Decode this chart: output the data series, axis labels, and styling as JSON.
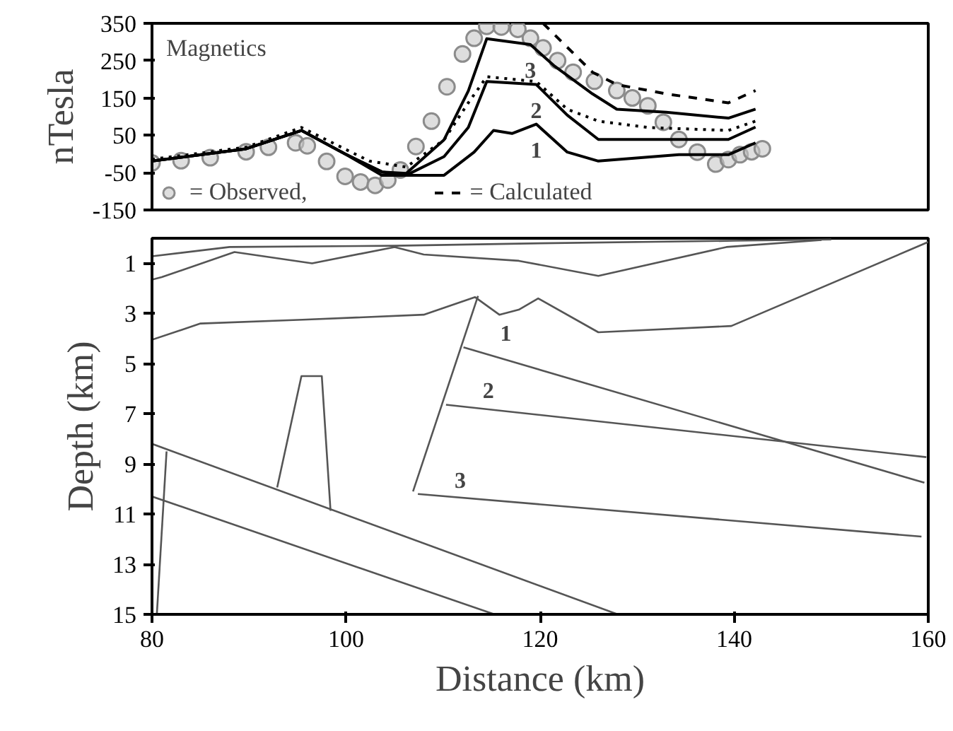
{
  "chart_data": [
    {
      "type": "line",
      "ylabel": "nTesla",
      "xlim": [
        80,
        160
      ],
      "ylim": [
        -150,
        350
      ],
      "yticks": [
        350,
        250,
        150,
        50,
        -50,
        -150
      ],
      "tick_labels": "y",
      "grid": false,
      "legend": "bottom left",
      "annotations": [
        "Magnetics",
        {
          "text": "1",
          "x": 119.6,
          "y": 80
        },
        {
          "text": "2",
          "x": 119.6,
          "y": 186
        },
        {
          "text": "3",
          "x": 119,
          "y": 293
        }
      ],
      "series": [
        {
          "name": "= Observed,",
          "type": "scatter",
          "marker": "circle",
          "color": "#8c8c8c",
          "x": [
            80,
            83,
            86,
            89.7,
            92,
            94.8,
            96,
            98,
            99.9,
            101.5,
            103,
            104.3,
            105.6,
            107.2,
            108.8,
            110.4,
            112,
            113.2,
            114.5,
            116,
            117.7,
            119,
            120.3,
            121.8,
            123.4,
            125.6,
            127.9,
            129.5,
            131.1,
            132.7,
            134.3,
            136.2,
            138.1,
            139.4,
            140.6,
            141.8,
            142.9
          ],
          "values": [
            -24,
            -18,
            -10,
            6,
            18,
            30,
            22,
            -20,
            -60,
            -75,
            -84,
            -70,
            -43,
            20,
            88,
            180,
            268,
            310,
            342,
            340,
            334,
            310,
            284,
            250,
            219,
            195,
            170,
            150,
            129,
            85,
            39,
            5,
            -27,
            -15,
            -2,
            6,
            14
          ]
        },
        {
          "type": "line",
          "line_style": "solid",
          "color": "#000000",
          "x": [
            80,
            89.7,
            95.4,
            99.9,
            103.7,
            106.2,
            110.1,
            112.6,
            114.5,
            119,
            121.5,
            125.4,
            127.9,
            133,
            139.4,
            142.2
          ],
          "values": [
            -19,
            14,
            63,
            0,
            -48,
            -52,
            38,
            169,
            309,
            293,
            235,
            161,
            120,
            112,
            96,
            120
          ]
        },
        {
          "type": "line",
          "line_style": "solid",
          "color": "#000000",
          "x": [
            80,
            89.7,
            95.4,
            99.9,
            103.7,
            106.2,
            110.1,
            112.6,
            114.5,
            119.6,
            122.8,
            126,
            134.3,
            139.4,
            142.2
          ],
          "values": [
            -19,
            14,
            63,
            0,
            -48,
            -57,
            -7,
            71,
            194,
            186,
            104,
            39,
            39,
            39,
            72
          ]
        },
        {
          "type": "line",
          "line_style": "solid",
          "color": "#000000",
          "x": [
            80,
            89.7,
            95.4,
            99.9,
            103.7,
            110.1,
            113.2,
            115.2,
            117.1,
            119.6,
            122.8,
            126,
            134.3,
            139.4,
            142.2
          ],
          "values": [
            -19,
            14,
            63,
            0,
            -57,
            -57,
            5,
            63,
            55,
            80,
            5,
            -19,
            -2,
            -2,
            30
          ]
        },
        {
          "type": "line",
          "line_style": "dotted",
          "color": "#000000",
          "x": [
            80,
            89.7,
            95.4,
            102.4,
            106.2,
            110.1,
            112.6,
            114.5,
            119.6,
            122.8,
            126,
            131.1,
            139.4,
            142.2
          ],
          "values": [
            -14,
            18,
            71,
            -19,
            -35,
            38,
            137,
            207,
            194,
            120,
            88,
            71,
            63,
            88
          ]
        },
        {
          "name": "= Calculated",
          "type": "line",
          "line_style": "dashed",
          "color": "#000000",
          "x": [
            120.3,
            125.4,
            127.9,
            133,
            139.4,
            142.2
          ],
          "values": [
            350,
            219,
            186,
            161,
            137,
            170
          ]
        }
      ]
    },
    {
      "type": "line",
      "xlabel": "Distance (km)",
      "ylabel": "Depth (km)",
      "xlim": [
        80,
        160
      ],
      "ylim": [
        15,
        0
      ],
      "xticks": [
        80,
        100,
        120,
        140,
        160
      ],
      "yticks": [
        1,
        3,
        5,
        7,
        9,
        11,
        13,
        15
      ],
      "grid": false,
      "annotations": [
        {
          "text": "1",
          "x": 112.1,
          "y": 4.35
        },
        {
          "text": "2",
          "x": 110.3,
          "y": 6.64
        },
        {
          "text": "3",
          "x": 107.4,
          "y": 10.2
        }
      ],
      "series": [
        {
          "color": "#555555",
          "x": [
            80,
            88,
            105,
            120,
            140,
            150
          ],
          "values": [
            0.72,
            0.35,
            0.3,
            0.2,
            0.1,
            0.05
          ]
        },
        {
          "color": "#555555",
          "x": [
            80,
            81,
            88.5,
            96.5,
            105,
            108,
            117.8,
            126,
            139.2,
            149
          ],
          "values": [
            1.65,
            1.55,
            0.55,
            1.0,
            0.35,
            0.65,
            0.9,
            1.5,
            0.35,
            0.07
          ]
        },
        {
          "color": "#555555",
          "x": [
            80,
            85,
            95.5,
            108,
            113.3,
            115.8,
            117.8,
            119.8,
            126,
            139.7,
            160
          ],
          "values": [
            4.05,
            3.4,
            3.25,
            3.05,
            2.35,
            3.05,
            2.85,
            2.4,
            3.75,
            3.5,
            0.15
          ]
        },
        {
          "color": "#555555",
          "x": [
            113.6,
            106.9
          ],
          "values": [
            2.3,
            10.1
          ]
        },
        {
          "color": "#555555",
          "x": [
            112.1,
            159.6
          ],
          "values": [
            4.35,
            9.75
          ]
        },
        {
          "color": "#555555",
          "x": [
            110.3,
            159.8
          ],
          "values": [
            6.64,
            8.73
          ]
        },
        {
          "color": "#555555",
          "x": [
            107.4,
            159.3
          ],
          "values": [
            10.2,
            11.9
          ]
        },
        {
          "color": "#555555",
          "x": [
            92.9,
            95.4,
            97.5,
            98.4
          ],
          "values": [
            9.94,
            5.5,
            5.5,
            10.87
          ]
        },
        {
          "color": "#555555",
          "x": [
            80,
            128
          ],
          "values": [
            8.2,
            15
          ]
        },
        {
          "color": "#555555",
          "x": [
            80,
            115.3
          ],
          "values": [
            10.3,
            15
          ]
        },
        {
          "color": "#555555",
          "x": [
            81.5,
            80.5
          ],
          "values": [
            8.5,
            15
          ]
        }
      ]
    }
  ]
}
